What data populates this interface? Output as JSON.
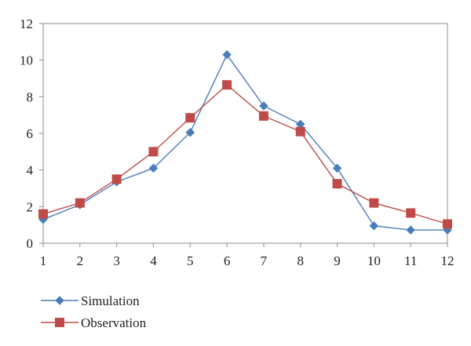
{
  "chart_data": {
    "type": "line",
    "title": "",
    "xlabel": "",
    "ylabel": "",
    "x": [
      1,
      2,
      3,
      4,
      5,
      6,
      7,
      8,
      9,
      10,
      11,
      12
    ],
    "x_tick_labels": [
      "1",
      "2",
      "3",
      "4",
      "5",
      "6",
      "7",
      "8",
      "9",
      "10",
      "11",
      "12"
    ],
    "ylim": [
      0,
      12
    ],
    "y_ticks": [
      0,
      2,
      4,
      6,
      8,
      10,
      12
    ],
    "y_tick_labels": [
      "0",
      "2",
      "4",
      "6",
      "8",
      "10",
      "12"
    ],
    "grid": false,
    "legend_position": "bottom-left",
    "series": [
      {
        "name": "Simulation",
        "marker": "diamond",
        "color": "#4a7ebb",
        "values": [
          1.3,
          2.1,
          3.35,
          4.1,
          6.05,
          10.3,
          7.5,
          6.5,
          4.1,
          0.95,
          0.72,
          0.72
        ]
      },
      {
        "name": "Observation",
        "marker": "square",
        "color": "#be4b48",
        "values": [
          1.6,
          2.2,
          3.5,
          5.0,
          6.85,
          8.65,
          6.95,
          6.1,
          3.25,
          2.2,
          1.65,
          1.05
        ]
      }
    ]
  }
}
